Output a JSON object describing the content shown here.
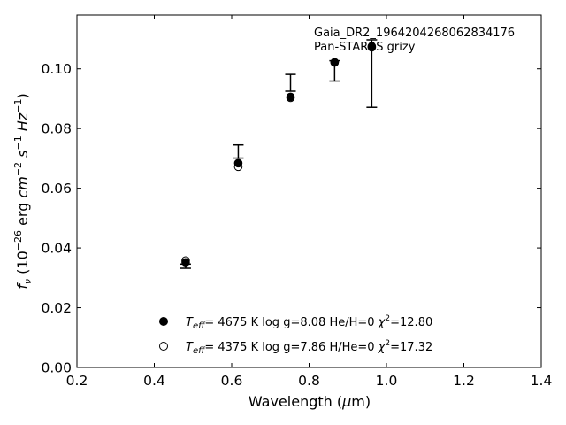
{
  "chart_data": {
    "type": "scatter",
    "annotation_lines": [
      "Gaia_DR2_1964204268062834176",
      "Pan-STARRS grizy"
    ],
    "xlabel": "Wavelength (μm)",
    "ylabel": "f_ν (10^-26 erg cm^-2 s^-1 Hz^-1)",
    "xlim": [
      0.2,
      1.4
    ],
    "ylim": [
      0.0,
      0.118
    ],
    "x_ticks": [
      0.2,
      0.4,
      0.6,
      0.8,
      1.0,
      1.2,
      1.4
    ],
    "x_tick_labels": [
      "0.2",
      "0.4",
      "0.6",
      "0.8",
      "1.0",
      "1.2",
      "1.4"
    ],
    "y_ticks": [
      0.0,
      0.02,
      0.04,
      0.06,
      0.08,
      0.1
    ],
    "y_tick_labels": [
      "0.00",
      "0.02",
      "0.04",
      "0.06",
      "0.08",
      "0.10"
    ],
    "grid": false,
    "observed": {
      "wavelength": [
        0.481,
        0.617,
        0.752,
        0.866,
        0.962
      ],
      "flux": [
        0.0339,
        0.0723,
        0.0953,
        0.0993,
        0.0984
      ],
      "flux_err": [
        0.0007,
        0.0022,
        0.0028,
        0.0034,
        0.0113
      ]
    },
    "series": [
      {
        "marker": "filled",
        "wavelength": [
          0.481,
          0.617,
          0.752,
          0.866,
          0.962
        ],
        "flux": [
          0.0352,
          0.0684,
          0.0906,
          0.1021,
          0.1075
        ],
        "legend": {
          "teff": "4675",
          "logg": "8.08",
          "comp": "He/H=0",
          "chi2": "12.80"
        }
      },
      {
        "marker": "open",
        "wavelength": [
          0.481,
          0.617,
          0.752,
          0.866,
          0.962
        ],
        "flux": [
          0.0358,
          0.0672,
          0.0903,
          0.1022,
          0.1072
        ],
        "legend": {
          "teff": "4375",
          "logg": "7.86",
          "comp": "H/He=0",
          "chi2": "17.32"
        }
      }
    ]
  }
}
